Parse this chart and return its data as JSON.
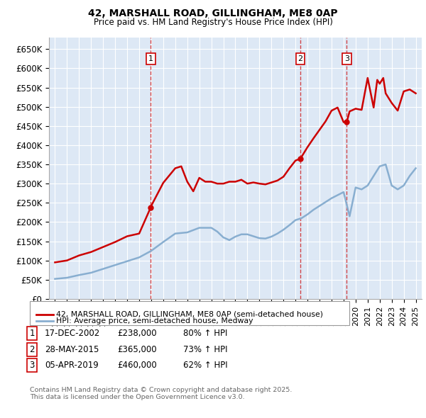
{
  "title1": "42, MARSHALL ROAD, GILLINGHAM, ME8 0AP",
  "title2": "Price paid vs. HM Land Registry's House Price Index (HPI)",
  "ylim": [
    0,
    680000
  ],
  "yticks": [
    0,
    50000,
    100000,
    150000,
    200000,
    250000,
    300000,
    350000,
    400000,
    450000,
    500000,
    550000,
    600000,
    650000
  ],
  "ytick_labels": [
    "£0",
    "£50K",
    "£100K",
    "£150K",
    "£200K",
    "£250K",
    "£300K",
    "£350K",
    "£400K",
    "£450K",
    "£500K",
    "£550K",
    "£600K",
    "£650K"
  ],
  "xlim_start": 1994.5,
  "xlim_end": 2025.5,
  "bg_color": "#dde8f5",
  "grid_color": "#ffffff",
  "red_color": "#cc0000",
  "blue_color": "#88aed0",
  "sale_dates": [
    2002.96,
    2015.41,
    2019.26
  ],
  "sale_prices": [
    238000,
    365000,
    460000
  ],
  "sale_labels": [
    "1",
    "2",
    "3"
  ],
  "legend_line1": "42, MARSHALL ROAD, GILLINGHAM, ME8 0AP (semi-detached house)",
  "legend_line2": "HPI: Average price, semi-detached house, Medway",
  "table_data": [
    [
      "1",
      "17-DEC-2002",
      "£238,000",
      "80% ↑ HPI"
    ],
    [
      "2",
      "28-MAY-2015",
      "£365,000",
      "73% ↑ HPI"
    ],
    [
      "3",
      "05-APR-2019",
      "£460,000",
      "62% ↑ HPI"
    ]
  ],
  "footnote": "Contains HM Land Registry data © Crown copyright and database right 2025.\nThis data is licensed under the Open Government Licence v3.0.",
  "hpi_x": [
    1995,
    1996,
    1997,
    1998,
    1999,
    2000,
    2001,
    2002,
    2003,
    2004,
    2005,
    2006,
    2007,
    2008,
    2008.5,
    2009,
    2009.5,
    2010,
    2010.5,
    2011,
    2011.5,
    2012,
    2012.5,
    2013,
    2013.5,
    2014,
    2014.5,
    2015,
    2015.5,
    2016,
    2016.5,
    2017,
    2017.5,
    2018,
    2018.5,
    2019,
    2019.5,
    2020,
    2020.5,
    2021,
    2021.5,
    2022,
    2022.5,
    2023,
    2023.5,
    2024,
    2024.5,
    2025
  ],
  "hpi_y": [
    52000,
    55000,
    62000,
    68000,
    78000,
    88000,
    98000,
    108000,
    125000,
    148000,
    170000,
    173000,
    185000,
    185000,
    175000,
    160000,
    153000,
    162000,
    168000,
    168000,
    163000,
    158000,
    157000,
    162000,
    170000,
    180000,
    192000,
    205000,
    210000,
    220000,
    232000,
    242000,
    252000,
    262000,
    270000,
    278000,
    215000,
    290000,
    285000,
    295000,
    320000,
    345000,
    350000,
    295000,
    285000,
    295000,
    320000,
    340000
  ],
  "price_x": [
    1995,
    1996,
    1997,
    1998,
    1999,
    2000,
    2001,
    2002,
    2002.96,
    2003,
    2004,
    2005,
    2005.5,
    2006,
    2006.5,
    2007,
    2007.5,
    2008,
    2008.5,
    2009,
    2009.5,
    2010,
    2010.5,
    2011,
    2011.5,
    2012,
    2012.5,
    2013,
    2013.5,
    2014,
    2014.5,
    2015,
    2015.41,
    2016,
    2016.5,
    2017,
    2017.5,
    2018,
    2018.5,
    2019,
    2019.26,
    2019.5,
    2020,
    2020.5,
    2021,
    2021.5,
    2021.8,
    2022,
    2022.3,
    2022.5,
    2023,
    2023.5,
    2024,
    2024.5,
    2025
  ],
  "price_y": [
    95000,
    100000,
    113000,
    122000,
    135000,
    148000,
    163000,
    170000,
    238000,
    242000,
    302000,
    340000,
    345000,
    305000,
    280000,
    315000,
    305000,
    305000,
    300000,
    300000,
    305000,
    305000,
    310000,
    300000,
    303000,
    300000,
    298000,
    303000,
    308000,
    318000,
    340000,
    360000,
    365000,
    395000,
    418000,
    440000,
    462000,
    490000,
    498000,
    460000,
    460000,
    488000,
    495000,
    492000,
    575000,
    498000,
    570000,
    560000,
    575000,
    535000,
    510000,
    490000,
    540000,
    545000,
    535000
  ]
}
